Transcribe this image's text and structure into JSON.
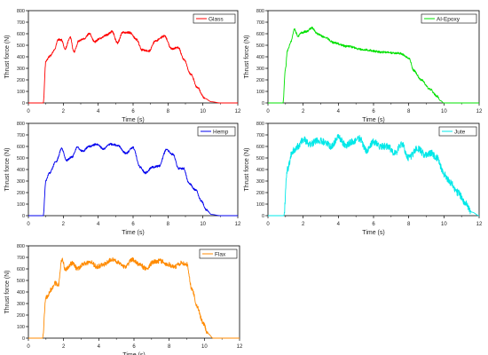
{
  "chart_data": [
    {
      "type": "line",
      "xlabel": "Time (s)",
      "ylabel": "Thrust force (N)",
      "xlim": [
        0,
        12
      ],
      "ylim": [
        0,
        800
      ],
      "xticks": [
        "0",
        "2",
        "4",
        "6",
        "8",
        "10",
        "12"
      ],
      "yticks": [
        "0",
        "100",
        "200",
        "300",
        "400",
        "500",
        "600",
        "700",
        "800"
      ],
      "legend_position": "top-right",
      "grid": false,
      "series": [
        {
          "name": "Glass",
          "color": "#ff0000",
          "x": [
            0,
            0.85,
            1.0,
            1.2,
            1.5,
            1.7,
            1.9,
            2.1,
            2.4,
            2.6,
            2.9,
            3.2,
            3.5,
            3.8,
            4.1,
            4.5,
            4.8,
            5.1,
            5.4,
            5.8,
            6.2,
            6.5,
            6.9,
            7.3,
            7.8,
            8.2,
            8.6,
            8.9,
            9.3,
            9.7,
            10.1,
            10.5,
            11.0,
            12.0
          ],
          "y": [
            0,
            0,
            360,
            400,
            460,
            550,
            545,
            470,
            570,
            440,
            540,
            560,
            600,
            530,
            560,
            590,
            620,
            520,
            610,
            610,
            550,
            460,
            450,
            540,
            580,
            470,
            480,
            380,
            250,
            130,
            40,
            10,
            0,
            0
          ]
        },
        {
          "name": "Al-Epoxy",
          "color": "#00e000",
          "x": [
            0,
            0.85,
            1.0,
            1.1,
            1.3,
            1.5,
            1.7,
            1.9,
            2.2,
            2.5,
            2.8,
            3.2,
            3.8,
            4.5,
            5.5,
            6.5,
            7.5,
            8.0,
            8.3,
            8.7,
            9.2,
            9.6,
            9.8,
            10.0,
            12.0
          ],
          "y": [
            0,
            0,
            300,
            450,
            530,
            640,
            580,
            610,
            620,
            650,
            600,
            570,
            520,
            490,
            460,
            440,
            430,
            390,
            280,
            200,
            120,
            60,
            20,
            0,
            0
          ]
        },
        {
          "name": "Hemp",
          "color": "#0000ee",
          "x": [
            0,
            0.85,
            1.0,
            1.2,
            1.6,
            1.9,
            2.2,
            2.5,
            2.8,
            3.1,
            3.5,
            3.9,
            4.3,
            4.7,
            5.1,
            5.6,
            6.0,
            6.4,
            6.7,
            7.1,
            7.5,
            7.9,
            8.3,
            8.6,
            8.9,
            9.2,
            9.6,
            9.9,
            10.2,
            10.5,
            11.0,
            12.0
          ],
          "y": [
            0,
            0,
            300,
            370,
            470,
            580,
            480,
            510,
            590,
            560,
            600,
            620,
            580,
            620,
            610,
            540,
            590,
            420,
            370,
            420,
            430,
            570,
            530,
            410,
            410,
            280,
            220,
            130,
            50,
            10,
            0,
            0
          ]
        },
        {
          "name": "Jute",
          "color": "#00e8e8",
          "x": [
            0,
            0.9,
            1.1,
            1.4,
            1.7,
            2.0,
            2.4,
            2.8,
            3.2,
            3.6,
            4.0,
            4.4,
            4.8,
            5.2,
            5.6,
            6.0,
            6.4,
            6.8,
            7.2,
            7.6,
            8.0,
            8.5,
            9.0,
            9.3,
            9.6,
            10.0,
            10.4,
            10.8,
            11.2,
            11.6,
            12.0
          ],
          "y": [
            0,
            0,
            400,
            560,
            600,
            660,
            620,
            650,
            640,
            600,
            680,
            610,
            640,
            670,
            560,
            640,
            600,
            600,
            540,
            620,
            500,
            580,
            520,
            540,
            500,
            360,
            280,
            200,
            110,
            30,
            0
          ]
        },
        {
          "name": "Flax",
          "color": "#ff8a00",
          "x": [
            0,
            0.8,
            1.0,
            1.3,
            1.5,
            1.7,
            1.9,
            2.1,
            2.5,
            2.8,
            3.1,
            3.5,
            3.9,
            4.3,
            4.7,
            5.1,
            5.5,
            5.9,
            6.3,
            6.7,
            7.1,
            7.5,
            7.9,
            8.3,
            8.7,
            9.0,
            9.3,
            9.6,
            9.9,
            10.2,
            10.5,
            10.8,
            12.0
          ],
          "y": [
            0,
            0,
            350,
            420,
            480,
            460,
            680,
            600,
            650,
            600,
            640,
            660,
            620,
            640,
            680,
            660,
            620,
            680,
            640,
            600,
            660,
            670,
            640,
            620,
            650,
            640,
            420,
            270,
            140,
            40,
            0,
            0,
            0
          ]
        }
      ]
    }
  ]
}
